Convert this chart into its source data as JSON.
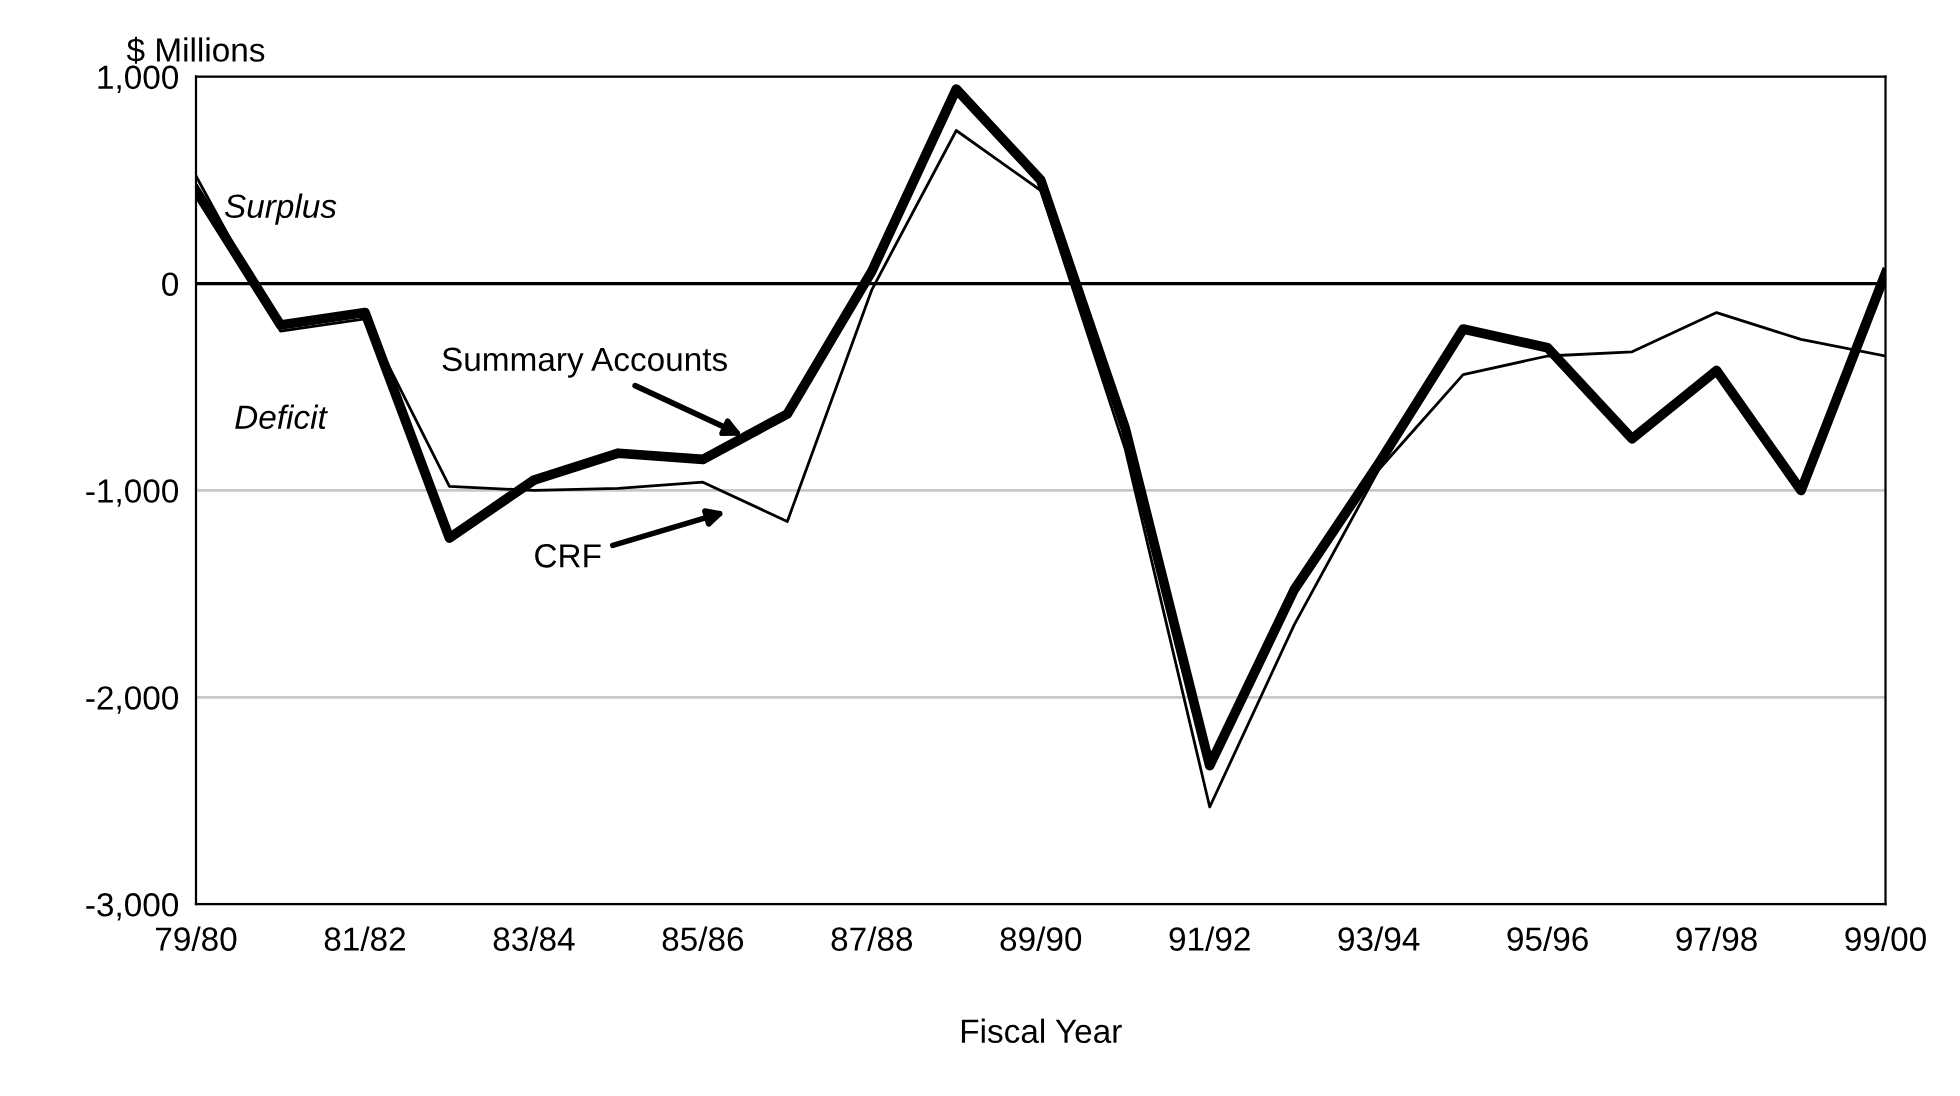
{
  "chart_data": {
    "type": "line",
    "ylabel": "$ Millions",
    "xlabel": "Fiscal Year",
    "categories": [
      "79/80",
      null,
      "81/82",
      null,
      "83/84",
      null,
      "85/86",
      null,
      "87/88",
      null,
      "89/90",
      null,
      "91/92",
      null,
      "93/94",
      null,
      "95/96",
      null,
      "97/98",
      null,
      "99/00"
    ],
    "series": [
      {
        "name": "Summary Accounts",
        "color": "#000000",
        "values": [
          450,
          -200,
          -140,
          -1230,
          -950,
          -820,
          -850,
          -630,
          60,
          940,
          500,
          -700,
          -2330,
          -1480,
          -870,
          -220,
          -310,
          -750,
          -420,
          -1000,
          50
        ]
      },
      {
        "name": "CRF",
        "color": "#000000",
        "values": [
          520,
          -230,
          -170,
          -980,
          -1000,
          -990,
          -960,
          -1150,
          -30,
          740,
          450,
          -800,
          -2530,
          -1650,
          -900,
          -440,
          -350,
          -330,
          -140,
          -270,
          -350
        ]
      }
    ],
    "ylim": [
      -3000,
      1000
    ],
    "yticks": [
      {
        "value": -3000,
        "label": "-3,000"
      },
      {
        "value": -2000,
        "label": "-2,000"
      },
      {
        "value": -1000,
        "label": "-1,000"
      },
      0,
      {
        "value": 1000,
        "label": "1,000"
      }
    ],
    "grid": "y",
    "legend": false,
    "marker": "none",
    "line_style": "solid",
    "ref_lines": [
      {
        "axis": "y",
        "value": 0,
        "color": "#000000"
      }
    ],
    "annotations": [
      "Surplus",
      "Deficit"
    ]
  }
}
